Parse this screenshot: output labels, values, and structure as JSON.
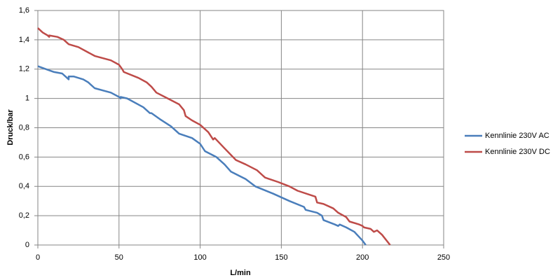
{
  "chart_data": {
    "type": "line",
    "x_label": "L/min",
    "y_label": "Druck/bar",
    "xlim": [
      0,
      250
    ],
    "xticks": [
      0,
      50,
      100,
      150,
      200,
      250
    ],
    "ylim": [
      0,
      1.6
    ],
    "yticks": [
      0,
      {
        "value": 0.2,
        "label": "0,2"
      },
      {
        "value": 0.4,
        "label": "0,4"
      },
      {
        "value": 0.6,
        "label": "0,6"
      },
      {
        "value": 0.8,
        "label": "0,8"
      },
      1,
      {
        "value": 1.2,
        "label": "1,2"
      },
      {
        "value": 1.4,
        "label": "1,4"
      },
      {
        "value": 1.6,
        "label": "1,6"
      }
    ],
    "grid": true,
    "legend": "right",
    "series": [
      {
        "name": "Kennlinie 230V AC",
        "color": "#4a7ebb",
        "x": [
          0,
          5,
          10,
          15,
          18,
          19,
          19,
          22,
          28,
          31,
          35,
          45,
          50,
          51,
          51,
          55,
          65,
          69,
          70,
          75,
          82,
          87,
          95,
          100,
          103,
          110,
          115,
          119,
          128,
          134,
          145,
          155,
          164,
          165,
          172,
          175,
          176,
          183,
          185,
          186,
          190,
          195,
          200,
          202
        ],
        "values": [
          1.22,
          1.2,
          1.18,
          1.17,
          1.14,
          1.13,
          1.15,
          1.15,
          1.13,
          1.11,
          1.07,
          1.04,
          1.01,
          1.0,
          1.01,
          1.0,
          0.94,
          0.9,
          0.9,
          0.86,
          0.81,
          0.76,
          0.73,
          0.69,
          0.64,
          0.6,
          0.55,
          0.5,
          0.45,
          0.4,
          0.35,
          0.3,
          0.26,
          0.24,
          0.22,
          0.2,
          0.17,
          0.14,
          0.13,
          0.14,
          0.12,
          0.09,
          0.03,
          0
        ]
      },
      {
        "name": "Kennlinie 230V DC",
        "color": "#be4b48",
        "x": [
          0,
          3,
          6,
          7,
          7,
          12,
          16,
          19,
          25,
          30,
          35,
          45,
          50,
          52,
          53,
          62,
          67,
          70,
          73,
          80,
          87,
          90,
          91,
          95,
          100,
          105,
          108,
          109,
          115,
          122,
          128,
          135,
          138,
          140,
          148,
          155,
          160,
          171,
          172,
          176,
          182,
          185,
          190,
          192,
          198,
          200,
          201,
          205,
          207,
          209,
          212,
          217
        ],
        "values": [
          1.48,
          1.45,
          1.43,
          1.42,
          1.43,
          1.42,
          1.4,
          1.37,
          1.35,
          1.32,
          1.29,
          1.26,
          1.23,
          1.2,
          1.18,
          1.14,
          1.11,
          1.08,
          1.04,
          1.0,
          0.96,
          0.92,
          0.88,
          0.85,
          0.82,
          0.77,
          0.72,
          0.73,
          0.66,
          0.58,
          0.55,
          0.51,
          0.48,
          0.46,
          0.43,
          0.4,
          0.37,
          0.33,
          0.29,
          0.28,
          0.25,
          0.22,
          0.19,
          0.16,
          0.14,
          0.13,
          0.12,
          0.11,
          0.09,
          0.1,
          0.07,
          0
        ]
      }
    ]
  }
}
